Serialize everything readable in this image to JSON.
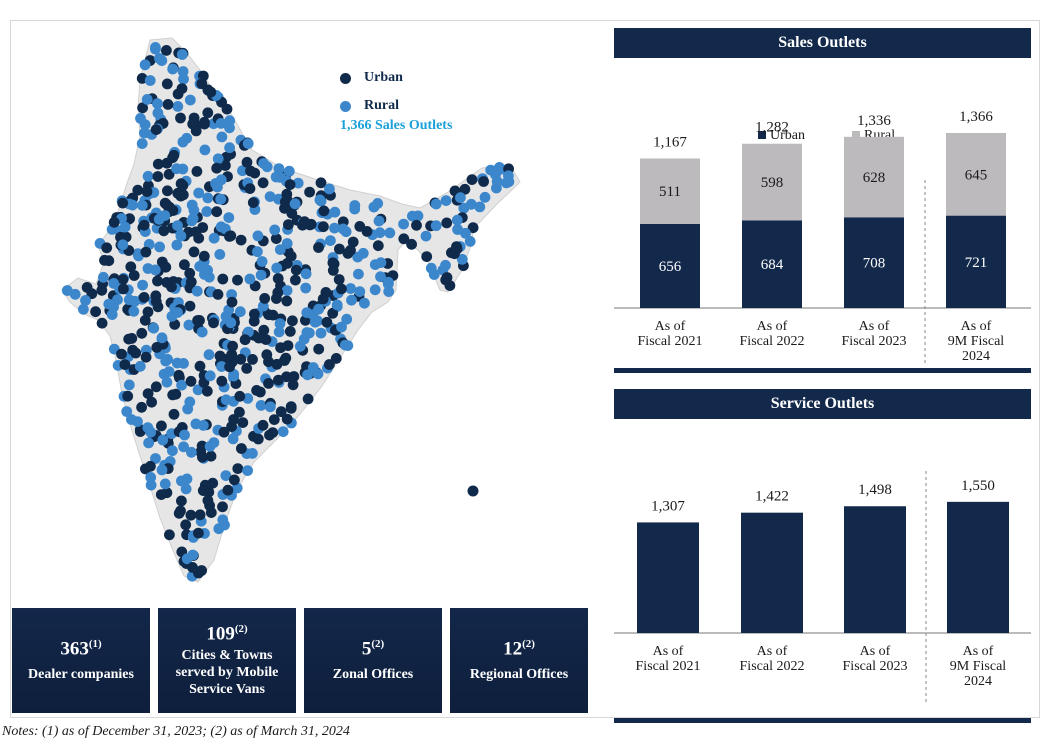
{
  "map": {
    "legend": [
      {
        "label": "Urban",
        "color": "#0f2a4a"
      },
      {
        "label": "Rural",
        "color": "#3c87cc"
      }
    ],
    "total_label": "1,366 Sales Outlets",
    "region_color": "#e6e6e6"
  },
  "stats": [
    {
      "value": "363",
      "note": "(1)",
      "label": "Dealer companies"
    },
    {
      "value": "109",
      "note": "(2)",
      "label": "Cities & Towns served by Mobile Service Vans"
    },
    {
      "value": "5",
      "note": "(2)",
      "label": "Zonal Offices"
    },
    {
      "value": "12",
      "note": "(2)",
      "label": "Regional Offices"
    }
  ],
  "notes": "Notes: (1) as of December 31, 2023; (2) as of March 31, 2024",
  "chart_data": [
    {
      "type": "bar",
      "title": "Sales Outlets",
      "categories": [
        [
          "As of",
          "Fiscal 2021"
        ],
        [
          "As of",
          "Fiscal 2022"
        ],
        [
          "As of",
          "Fiscal 2023"
        ],
        [
          "As of",
          "9M Fiscal",
          "2024"
        ]
      ],
      "series": [
        {
          "name": "Urban",
          "values": [
            656,
            684,
            708,
            721
          ],
          "labels": [
            "656",
            "684",
            "708",
            "721"
          ],
          "color": "#13294b",
          "label_color": "#ffffff"
        },
        {
          "name": "Rural",
          "values": [
            511,
            598,
            628,
            645
          ],
          "labels": [
            "511",
            "598",
            "628",
            "645"
          ],
          "color": "#bdbabd",
          "label_color": "#1a1a1a"
        }
      ],
      "totals": [
        "1,167",
        "1,282",
        "1,336",
        "1,366"
      ],
      "total_values": [
        1167,
        1282,
        1336,
        1366
      ],
      "stacked": true,
      "legend_position": "top"
    },
    {
      "type": "bar",
      "title": "Service Outlets",
      "categories": [
        [
          "As of",
          "Fiscal 2021"
        ],
        [
          "As of",
          "Fiscal 2022"
        ],
        [
          "As of",
          "Fiscal 2023"
        ],
        [
          "As of",
          "9M Fiscal",
          "2024"
        ]
      ],
      "values": [
        1307,
        1422,
        1498,
        1550
      ],
      "labels": [
        "1,307",
        "1,422",
        "1,498",
        "1,550"
      ],
      "color": "#13294b"
    }
  ]
}
